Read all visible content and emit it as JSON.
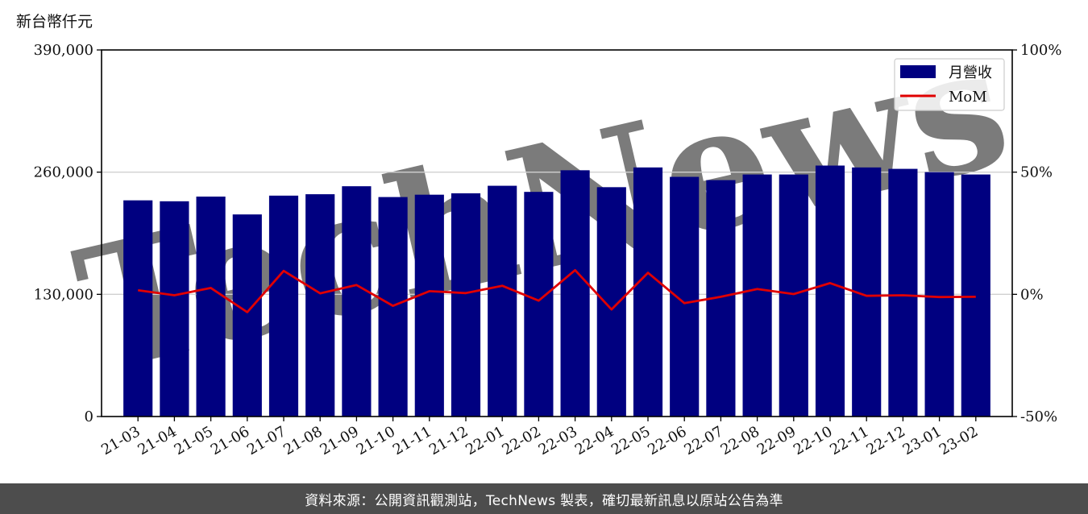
{
  "chart_data": {
    "type": "bar",
    "ylabel": "新台幣仟元",
    "categories": [
      "21-03",
      "21-04",
      "21-05",
      "21-06",
      "21-07",
      "21-08",
      "21-09",
      "21-10",
      "21-11",
      "21-12",
      "22-01",
      "22-02",
      "22-03",
      "22-04",
      "22-05",
      "22-06",
      "22-07",
      "22-08",
      "22-09",
      "22-10",
      "22-11",
      "22-12",
      "23-01",
      "23-02"
    ],
    "series": [
      {
        "name": "月營收",
        "type": "bar",
        "axis": "left",
        "color": "#000080",
        "values": [
          230000,
          229000,
          234000,
          215000,
          235000,
          236500,
          245000,
          233500,
          236000,
          237500,
          245500,
          239000,
          262000,
          244000,
          265000,
          255000,
          251500,
          257500,
          257500,
          267000,
          265000,
          263500,
          260000,
          257500
        ]
      },
      {
        "name": "MoM",
        "type": "line",
        "axis": "right",
        "color": "#e00000",
        "values": [
          1.7,
          -0.4,
          2.6,
          -7.3,
          9.6,
          0.4,
          3.8,
          -4.7,
          1.3,
          0.5,
          3.5,
          -2.6,
          9.9,
          -6.2,
          8.8,
          -3.6,
          -1.0,
          2.2,
          0.1,
          4.6,
          -0.6,
          -0.4,
          -1.1,
          -1.0
        ]
      }
    ],
    "ylim": [
      0,
      390000
    ],
    "yticks": [
      0,
      130000,
      260000,
      390000
    ],
    "ytick_labels": [
      "0",
      "130,000",
      "260,000",
      "390,000"
    ],
    "y2lim": [
      -50,
      100
    ],
    "y2ticks": [
      -50,
      0,
      50,
      100
    ],
    "y2tick_labels": [
      "-50%",
      "0%",
      "50%",
      "100%"
    ],
    "grid": "horizontal",
    "legend_position": "top-right",
    "watermark": "TechNews"
  },
  "footer": {
    "text": "資料來源：公開資訊觀測站，TechNews 製表，確切最新訊息以原站公告為準"
  }
}
